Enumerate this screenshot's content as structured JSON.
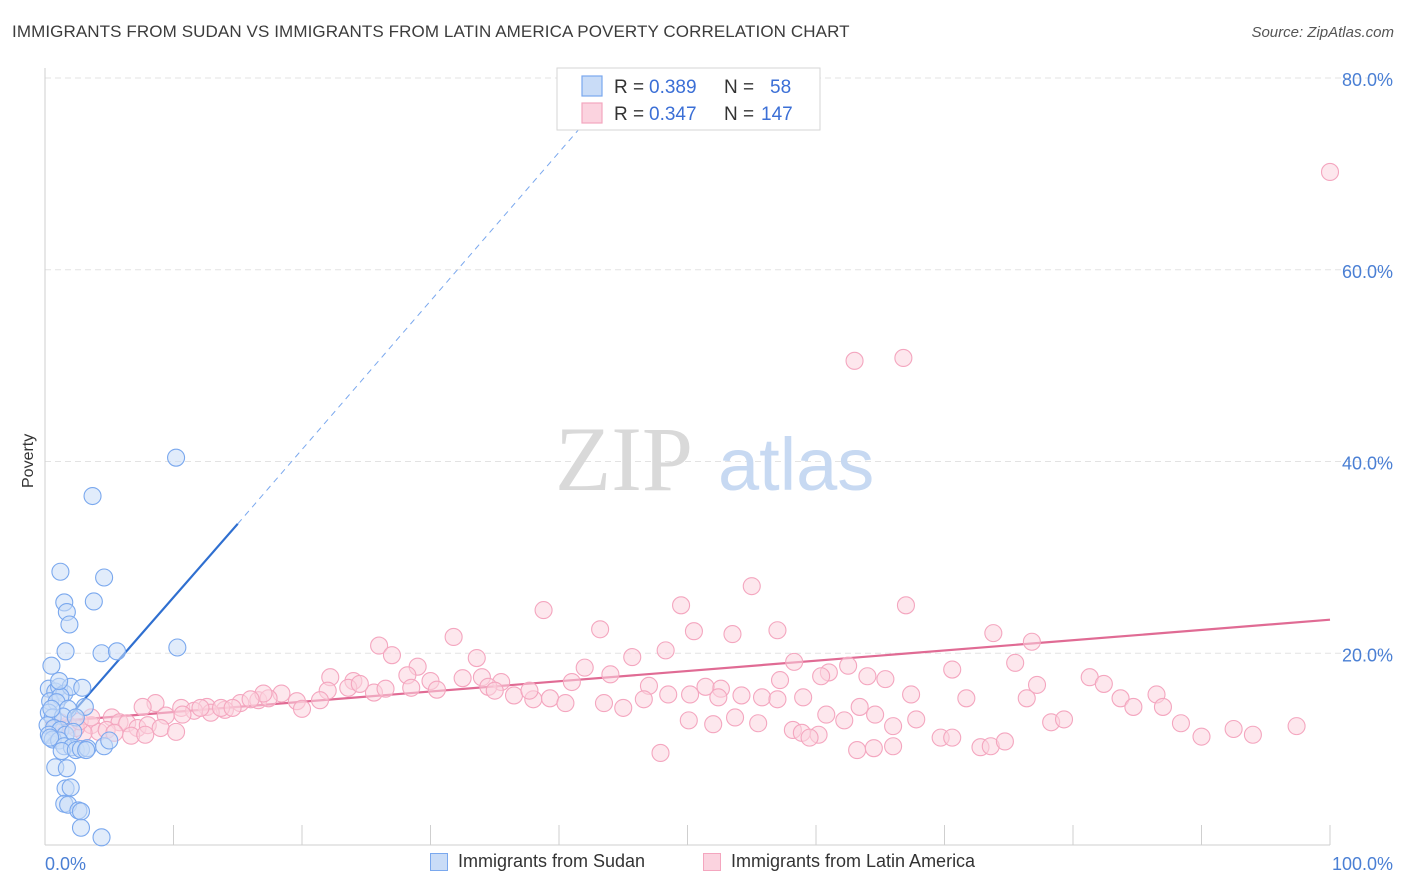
{
  "title": "IMMIGRANTS FROM SUDAN VS IMMIGRANTS FROM LATIN AMERICA POVERTY CORRELATION CHART",
  "source": "Source: ZipAtlas.com",
  "watermark": {
    "zip": "ZIP",
    "atlas": "atlas"
  },
  "legend_box": {
    "rows": [
      {
        "r_label": "R =",
        "r_value": "0.389",
        "n_label": "N =",
        "n_value": "58",
        "color": "#7aa8ee"
      },
      {
        "r_label": "R =",
        "r_value": "0.347",
        "n_label": "N =",
        "n_value": "147",
        "color": "#f4a6bf"
      }
    ]
  },
  "colors": {
    "sudan": "#7aa8ee",
    "sudan_fill": "#c9dcf7",
    "sudan_line": "#2f6fd0",
    "latin": "#f4a6bf",
    "latin_fill": "#fbd3df",
    "latin_line": "#e06b94",
    "grid": "#e3e3e3",
    "axis_text": "#4a7fd4"
  },
  "chart_data": {
    "type": "scatter",
    "ylabel": "Poverty",
    "xlim": [
      0,
      100
    ],
    "ylim": [
      0,
      80
    ],
    "y_ticks": [
      20,
      40,
      60,
      80
    ],
    "y_tick_labels": [
      "20.0%",
      "40.0%",
      "60.0%",
      "80.0%"
    ],
    "x_tick_labels": [
      "0.0%",
      "100.0%"
    ],
    "legend": [
      "Immigrants from Sudan",
      "Immigrants from Latin America"
    ],
    "series": [
      {
        "name": "Immigrants from Sudan",
        "trend": {
          "x": [
            0,
            15
          ],
          "y": [
            10.5,
            33.5
          ],
          "dashed_to": [
            45,
            80
          ]
        },
        "points": [
          [
            0.5,
            18.7
          ],
          [
            1.2,
            28.5
          ],
          [
            1.5,
            25.3
          ],
          [
            1.7,
            24.3
          ],
          [
            1.9,
            23
          ],
          [
            1.6,
            20.2
          ],
          [
            3.7,
            36.4
          ],
          [
            4.6,
            27.9
          ],
          [
            3.8,
            25.4
          ],
          [
            4.4,
            20
          ],
          [
            5.6,
            20.2
          ],
          [
            10.2,
            40.4
          ],
          [
            10.3,
            20.6
          ],
          [
            0.3,
            16.3
          ],
          [
            0.8,
            16
          ],
          [
            1.1,
            16.5
          ],
          [
            1.5,
            15.8
          ],
          [
            2,
            16.5
          ],
          [
            0.4,
            15
          ],
          [
            1.2,
            15.5
          ],
          [
            2.9,
            16.4
          ],
          [
            0.9,
            14.9
          ],
          [
            1.8,
            14.2
          ],
          [
            3.1,
            14.4
          ],
          [
            0.3,
            13.8
          ],
          [
            0.6,
            13.3
          ],
          [
            1.4,
            13.4
          ],
          [
            2.4,
            13.3
          ],
          [
            0.2,
            12.5
          ],
          [
            0.7,
            12.2
          ],
          [
            1.2,
            12
          ],
          [
            1.6,
            11.5
          ],
          [
            2.2,
            11.8
          ],
          [
            0.3,
            11.5
          ],
          [
            0.6,
            11
          ],
          [
            1.1,
            10.9
          ],
          [
            0.4,
            11.2
          ],
          [
            1.5,
            10.3
          ],
          [
            2.1,
            10.2
          ],
          [
            1.3,
            9.8
          ],
          [
            2.4,
            9.9
          ],
          [
            2.8,
            10
          ],
          [
            3.3,
            10.1
          ],
          [
            4.6,
            10.3
          ],
          [
            5,
            10.9
          ],
          [
            0.8,
            8.1
          ],
          [
            1.7,
            8
          ],
          [
            1.6,
            5.9
          ],
          [
            2,
            6
          ],
          [
            1.5,
            4.3
          ],
          [
            1.8,
            4.2
          ],
          [
            2.6,
            3.6
          ],
          [
            2.8,
            3.5
          ],
          [
            2.8,
            1.8
          ],
          [
            4.4,
            0.8
          ],
          [
            1.1,
            17.1
          ],
          [
            0.5,
            14.2
          ],
          [
            3.2,
            9.9
          ]
        ]
      },
      {
        "name": "Immigrants from Latin America",
        "trend": {
          "x": [
            0,
            100
          ],
          "y": [
            12.8,
            23.5
          ]
        },
        "points": [
          [
            100,
            70.2
          ],
          [
            63,
            50.5
          ],
          [
            66.8,
            50.8
          ],
          [
            55,
            27
          ],
          [
            49.5,
            25
          ],
          [
            38.8,
            24.5
          ],
          [
            67,
            25
          ],
          [
            73.8,
            22.1
          ],
          [
            76.8,
            21.2
          ],
          [
            57,
            22.4
          ],
          [
            53.5,
            22
          ],
          [
            50.5,
            22.3
          ],
          [
            43.2,
            22.5
          ],
          [
            31.8,
            21.7
          ],
          [
            26,
            20.8
          ],
          [
            33.6,
            19.5
          ],
          [
            27,
            19.8
          ],
          [
            22.2,
            17.5
          ],
          [
            42,
            18.5
          ],
          [
            45.7,
            19.6
          ],
          [
            48.3,
            20.3
          ],
          [
            58.3,
            19.1
          ],
          [
            62.5,
            18.7
          ],
          [
            61,
            18
          ],
          [
            65.4,
            17.3
          ],
          [
            70.6,
            18.3
          ],
          [
            75.5,
            19
          ],
          [
            81.3,
            17.5
          ],
          [
            29,
            18.6
          ],
          [
            28.2,
            17.7
          ],
          [
            30,
            17.1
          ],
          [
            41,
            17
          ],
          [
            44,
            17.8
          ],
          [
            47,
            16.6
          ],
          [
            52.6,
            16.3
          ],
          [
            57.2,
            17.2
          ],
          [
            60.4,
            17.6
          ],
          [
            64,
            17.6
          ],
          [
            67.4,
            15.7
          ],
          [
            71.7,
            15.3
          ],
          [
            76.4,
            15.3
          ],
          [
            77.2,
            16.7
          ],
          [
            24,
            17.1
          ],
          [
            25.6,
            15.9
          ],
          [
            23.6,
            16.4
          ],
          [
            22,
            16.1
          ],
          [
            21.4,
            15.1
          ],
          [
            18.4,
            15.8
          ],
          [
            16.6,
            15.1
          ],
          [
            17.4,
            15.3
          ],
          [
            17,
            15.8
          ],
          [
            19.6,
            15
          ],
          [
            20,
            14.2
          ],
          [
            15.2,
            14.8
          ],
          [
            14,
            14.1
          ],
          [
            12.6,
            14.4
          ],
          [
            10.6,
            14.3
          ],
          [
            8.6,
            14.8
          ],
          [
            7.6,
            14.4
          ],
          [
            9.4,
            13.5
          ],
          [
            11.6,
            14
          ],
          [
            12.9,
            13.8
          ],
          [
            13.7,
            14.3
          ],
          [
            34,
            17.5
          ],
          [
            35.5,
            17
          ],
          [
            36.5,
            15.6
          ],
          [
            38,
            15.2
          ],
          [
            39.3,
            15.3
          ],
          [
            28.5,
            16.4
          ],
          [
            30.5,
            16.2
          ],
          [
            32.5,
            17.4
          ],
          [
            37.7,
            16.1
          ],
          [
            34.5,
            16.5
          ],
          [
            35,
            16.1
          ],
          [
            24.5,
            16.8
          ],
          [
            26.5,
            16.3
          ],
          [
            40.5,
            14.8
          ],
          [
            43.5,
            14.8
          ],
          [
            45,
            14.3
          ],
          [
            46.6,
            15.2
          ],
          [
            48.5,
            15.7
          ],
          [
            50.2,
            15.7
          ],
          [
            51.4,
            16.5
          ],
          [
            52.4,
            15.4
          ],
          [
            54.2,
            15.6
          ],
          [
            55.8,
            15.4
          ],
          [
            57,
            15.2
          ],
          [
            59,
            15.4
          ],
          [
            60.8,
            13.6
          ],
          [
            62.2,
            13
          ],
          [
            63.4,
            14.4
          ],
          [
            64.6,
            13.6
          ],
          [
            66,
            12.4
          ],
          [
            67.8,
            13.1
          ],
          [
            69.7,
            11.2
          ],
          [
            70.6,
            11.2
          ],
          [
            72.8,
            10.2
          ],
          [
            73.6,
            10.3
          ],
          [
            74.7,
            10.8
          ],
          [
            78.3,
            12.8
          ],
          [
            79.3,
            13.1
          ],
          [
            82.4,
            16.8
          ],
          [
            83.7,
            15.3
          ],
          [
            84.7,
            14.4
          ],
          [
            86.5,
            15.7
          ],
          [
            87,
            14.4
          ],
          [
            88.4,
            12.7
          ],
          [
            94,
            11.5
          ],
          [
            97.4,
            12.4
          ],
          [
            92.5,
            12.1
          ],
          [
            90,
            11.3
          ],
          [
            47.9,
            9.6
          ],
          [
            52,
            12.6
          ],
          [
            55.5,
            12.7
          ],
          [
            58.2,
            12
          ],
          [
            60.2,
            11.5
          ],
          [
            63.2,
            9.9
          ],
          [
            58.9,
            11.7
          ],
          [
            59.5,
            11.2
          ],
          [
            64.5,
            10.1
          ],
          [
            66,
            10.3
          ],
          [
            5.2,
            13.3
          ],
          [
            5.8,
            12.8
          ],
          [
            6.4,
            12.7
          ],
          [
            7.2,
            12.2
          ],
          [
            8,
            12.5
          ],
          [
            9,
            12.2
          ],
          [
            10.2,
            11.8
          ],
          [
            6.7,
            11.4
          ],
          [
            3.6,
            12.5
          ],
          [
            4.2,
            11.8
          ],
          [
            4.8,
            12
          ],
          [
            3,
            11.7
          ],
          [
            2.4,
            12.2
          ],
          [
            1.8,
            12.5
          ],
          [
            1.2,
            12.8
          ],
          [
            0.8,
            12.2
          ],
          [
            2.7,
            12.9
          ],
          [
            3.6,
            13.3
          ],
          [
            5.4,
            11.7
          ],
          [
            7.8,
            11.5
          ],
          [
            10.7,
            13.6
          ],
          [
            12.1,
            14.3
          ],
          [
            14.6,
            14.3
          ],
          [
            16,
            15.2
          ],
          [
            50.1,
            13
          ],
          [
            53.7,
            13.3
          ]
        ]
      }
    ]
  }
}
